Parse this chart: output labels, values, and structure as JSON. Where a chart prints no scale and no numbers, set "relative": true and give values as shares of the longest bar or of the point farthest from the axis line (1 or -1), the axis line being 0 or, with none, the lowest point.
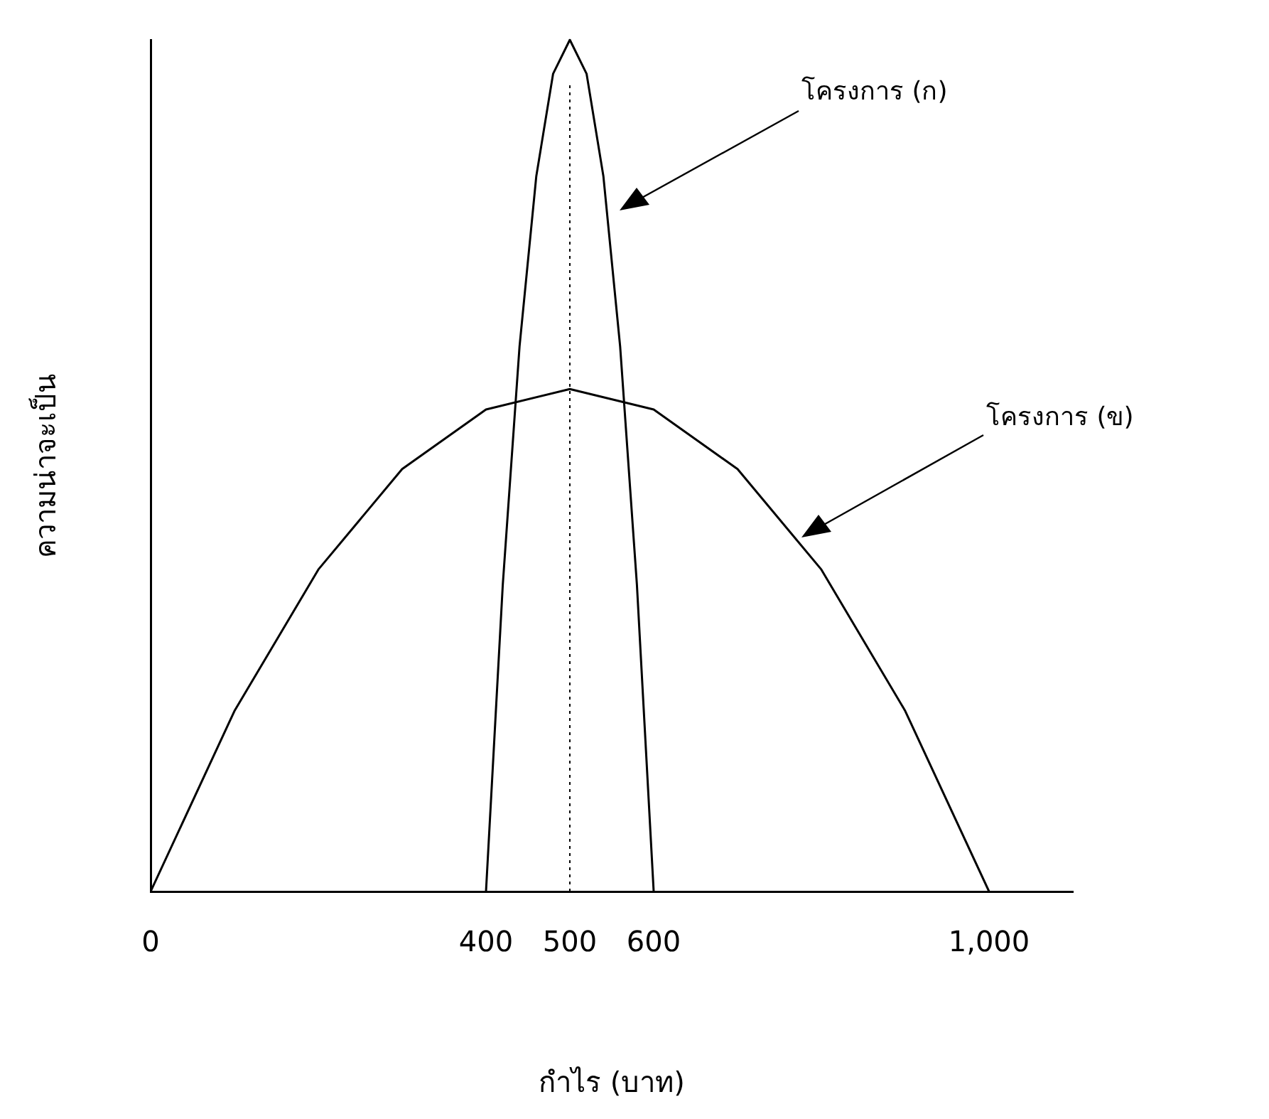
{
  "chart_data": {
    "type": "line",
    "relative": true,
    "xlabel": "กำไร (บาท)",
    "ylabel": "ความน่าจะเป็น",
    "xlim": [
      0,
      1100
    ],
    "xticks": [
      0,
      400,
      500,
      600,
      {
        "value": 1000,
        "label": "1,000"
      }
    ],
    "grid": false,
    "legend": false,
    "marker": "none",
    "line_style": "solid",
    "series": [
      {
        "color": "#000000",
        "x": [
          400,
          420,
          440,
          460,
          480,
          500,
          520,
          540,
          560,
          580,
          600
        ],
        "values": [
          0,
          0.36,
          0.64,
          0.84,
          0.96,
          1,
          0.96,
          0.84,
          0.64,
          0.36,
          0
        ]
      },
      {
        "color": "#000000",
        "x": [
          0,
          100,
          200,
          300,
          400,
          500,
          600,
          700,
          800,
          900,
          1000
        ],
        "values": [
          0,
          0.212,
          0.378,
          0.496,
          0.566,
          0.59,
          0.566,
          0.496,
          0.378,
          0.212,
          0
        ]
      }
    ],
    "ref_lines": [
      {
        "axis": "x",
        "value": 500,
        "line_style": "dotted",
        "color": "#000000"
      }
    ],
    "annotations": [
      "โครงการ (ก)",
      "โครงการ (ข)"
    ]
  }
}
